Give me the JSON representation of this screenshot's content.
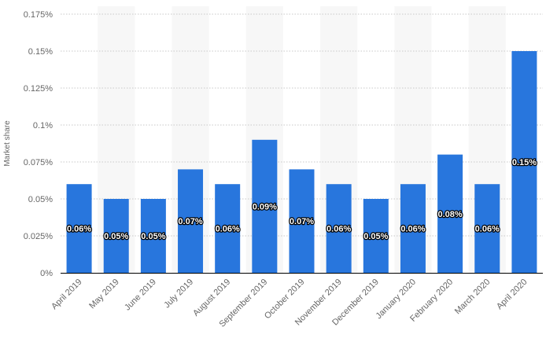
{
  "chart_data": {
    "type": "bar",
    "title": "",
    "xlabel": "",
    "ylabel": "Market share",
    "ylim": [
      0,
      0.175
    ],
    "yticks": [
      0,
      0.025,
      0.05,
      0.075,
      0.1,
      0.125,
      0.15,
      0.175
    ],
    "ytick_labels": [
      "0%",
      "0.025%",
      "0.05%",
      "0.075%",
      "0.1%",
      "0.125%",
      "0.15%",
      "0.175%"
    ],
    "categories": [
      "April 2019",
      "May 2019",
      "June 2019",
      "July 2019",
      "August 2019",
      "September 2019",
      "October 2019",
      "November 2019",
      "December 2019",
      "January 2020",
      "February 2020",
      "March 2020",
      "April 2020"
    ],
    "values": [
      0.06,
      0.05,
      0.05,
      0.07,
      0.06,
      0.09,
      0.07,
      0.06,
      0.05,
      0.06,
      0.08,
      0.06,
      0.15
    ],
    "data_labels": [
      "0.06%",
      "0.05%",
      "0.05%",
      "0.07%",
      "0.06%",
      "0.09%",
      "0.07%",
      "0.06%",
      "0.05%",
      "0.06%",
      "0.08%",
      "0.06%",
      "0.15%"
    ],
    "unit": "%",
    "grid": true,
    "colors": {
      "bar": "#2876dd",
      "band": "#f7f7f7",
      "grid": "#c8c8c8"
    }
  }
}
